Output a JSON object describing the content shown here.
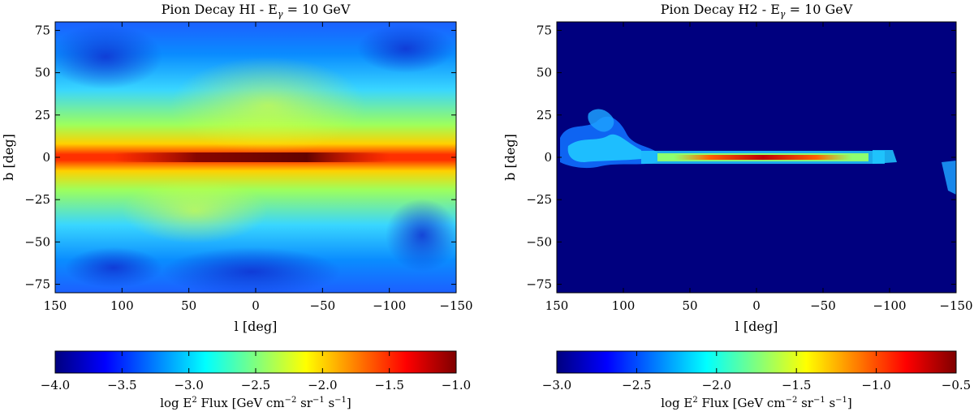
{
  "figure": {
    "colors": {
      "jet": [
        "#00007f",
        "#0000ff",
        "#007fff",
        "#00ffff",
        "#7fff7f",
        "#ffff00",
        "#ff7f00",
        "#ff0000",
        "#7f0000"
      ]
    }
  },
  "chart_data": [
    {
      "type": "heatmap",
      "title": "Pion Decay HI - E",
      "title_sub": "γ",
      "title_suffix": " = 10 GeV",
      "xlabel": "l [deg]",
      "ylabel": "b [deg]",
      "xlim": [
        150,
        -150
      ],
      "ylim": [
        -80,
        80
      ],
      "xticks": [
        150,
        100,
        50,
        0,
        -50,
        -100,
        -150
      ],
      "xtick_labels": [
        "150",
        "100",
        "50",
        "0",
        "−50",
        "−100",
        "−150"
      ],
      "yticks": [
        75,
        50,
        25,
        0,
        -25,
        -50,
        -75
      ],
      "ytick_labels": [
        "75",
        "50",
        "25",
        "0",
        "−25",
        "−50",
        "−75"
      ],
      "colorbar": {
        "range": [
          -4.0,
          -1.0
        ],
        "ticks": [
          -4.0,
          -3.5,
          -3.0,
          -2.5,
          -2.0,
          -1.5,
          -1.0
        ],
        "tick_labels": [
          "−4.0",
          "−3.5",
          "−3.0",
          "−2.5",
          "−2.0",
          "−1.5",
          "−1.0"
        ],
        "label_pre": "log E",
        "label_exp": "2",
        "label_mid": " Flux [GeV cm",
        "label_exp2": "−2",
        "label_mid2": " sr",
        "label_exp3": "−1",
        "label_mid3": " s",
        "label_exp4": "−1",
        "label_post": "]"
      },
      "map_description": "diffuse emission, peak along b=0 plane"
    },
    {
      "type": "heatmap",
      "title": "Pion Decay H2 - E",
      "title_sub": "γ",
      "title_suffix": " = 10 GeV",
      "xlabel": "l [deg]",
      "ylabel": "b [deg]",
      "xlim": [
        150,
        -150
      ],
      "ylim": [
        -80,
        80
      ],
      "xticks": [
        150,
        100,
        50,
        0,
        -50,
        -100,
        -150
      ],
      "xtick_labels": [
        "150",
        "100",
        "50",
        "0",
        "−50",
        "−100",
        "−150"
      ],
      "yticks": [
        75,
        50,
        25,
        0,
        -25,
        -50,
        -75
      ],
      "ytick_labels": [
        "75",
        "50",
        "25",
        "0",
        "−25",
        "−50",
        "−75"
      ],
      "colorbar": {
        "range": [
          -3.0,
          -0.5
        ],
        "ticks": [
          -3.0,
          -2.5,
          -2.0,
          -1.5,
          -1.0,
          -0.5
        ],
        "tick_labels": [
          "−3.0",
          "−2.5",
          "−2.0",
          "−1.5",
          "−1.0",
          "−0.5"
        ],
        "label_pre": "log E",
        "label_exp": "2",
        "label_mid": " Flux [GeV cm",
        "label_exp2": "−2",
        "label_mid2": " sr",
        "label_exp3": "−1",
        "label_mid3": " s",
        "label_exp4": "−1",
        "label_post": "]"
      },
      "map_description": "thin disk emission near b=0"
    }
  ]
}
